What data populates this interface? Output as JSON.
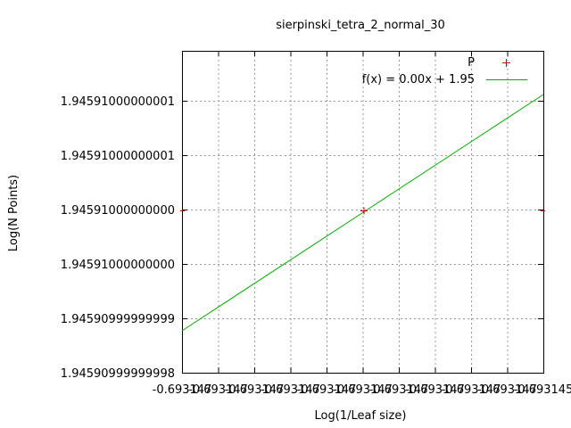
{
  "chart_data": {
    "type": "line",
    "title": "sierpinski_tetra_2_normal_30",
    "xlabel": "Log(1/Leaf size)",
    "ylabel": "Log(N Points)",
    "x_ticks": [
      "-0.693147",
      "-0.693147",
      "-0.693147",
      "-0.693147",
      "-0.693147",
      "-0.693147",
      "-0.693147",
      "-0.693147",
      "-0.693147",
      "-0.693147",
      "-0.693145"
    ],
    "y_ticks": [
      "1.94590999999998",
      "1.94590999999999",
      "1.94591000000000",
      "1.94591000000000",
      "1.94591000000001",
      "1.94591000000001"
    ],
    "grid": true,
    "legend_position": "top-right",
    "series": [
      {
        "name": "P",
        "style": "points",
        "color": "#cc0000",
        "points": [
          {
            "x": -0.693147,
            "y": 1.94591
          }
        ]
      },
      {
        "name": "f(x) = 0.00x + 1.95",
        "style": "line",
        "color": "#00aa00"
      }
    ]
  }
}
